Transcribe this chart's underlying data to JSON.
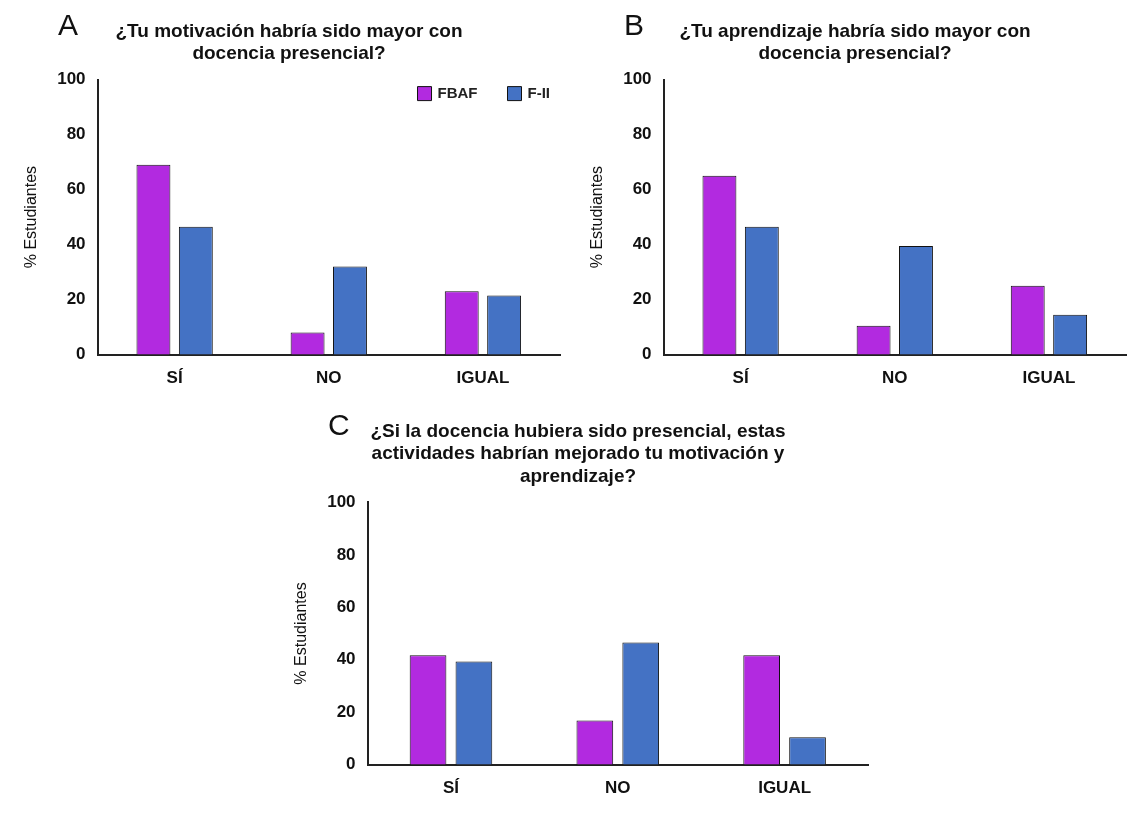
{
  "chart_data": [
    {
      "type": "bar",
      "title": "¿Tu motivación habría sido mayor con docencia presencial?",
      "ylabel": "% Estudiantes",
      "annotations": [
        "A"
      ],
      "categories": [
        "SÍ",
        "NO",
        "IGUAL"
      ],
      "series": [
        {
          "name": "FBAF",
          "color": "#b22ae0",
          "values": [
            69,
            8,
            23
          ]
        },
        {
          "name": "F-II",
          "color": "#4472c4",
          "values": [
            46.5,
            32,
            21.5
          ]
        }
      ],
      "ylim": [
        0,
        100
      ],
      "yticks": [
        0,
        20,
        40,
        60,
        80,
        100
      ],
      "grid": false,
      "legend": "top right"
    },
    {
      "type": "bar",
      "title": "¿Tu aprendizaje habría sido mayor con docencia presencial?",
      "ylabel": "% Estudiantes",
      "annotations": [
        "B"
      ],
      "categories": [
        "SÍ",
        "NO",
        "IGUAL"
      ],
      "series": [
        {
          "color": "#b22ae0",
          "values": [
            65,
            10.5,
            25
          ]
        },
        {
          "color": "#4472c4",
          "values": [
            46.5,
            39.5,
            14.5
          ]
        }
      ],
      "ylim": [
        0,
        100
      ],
      "yticks": [
        0,
        20,
        40,
        60,
        80,
        100
      ],
      "grid": false,
      "legend": false
    },
    {
      "type": "bar",
      "title": "¿Si la docencia hubiera sido presencial, estas actividades habrían mejorado tu motivación y aprendizaje?",
      "ylabel": "% Estudiantes",
      "annotations": [
        "C"
      ],
      "categories": [
        "SÍ",
        "NO",
        "IGUAL"
      ],
      "series": [
        {
          "color": "#b22ae0",
          "values": [
            41.7,
            16.8,
            41.7
          ]
        },
        {
          "color": "#4472c4",
          "values": [
            39.3,
            46.6,
            10.4
          ]
        }
      ],
      "ylim": [
        0,
        100
      ],
      "yticks": [
        0,
        20,
        40,
        60,
        80,
        100
      ],
      "grid": false,
      "legend": false
    }
  ]
}
